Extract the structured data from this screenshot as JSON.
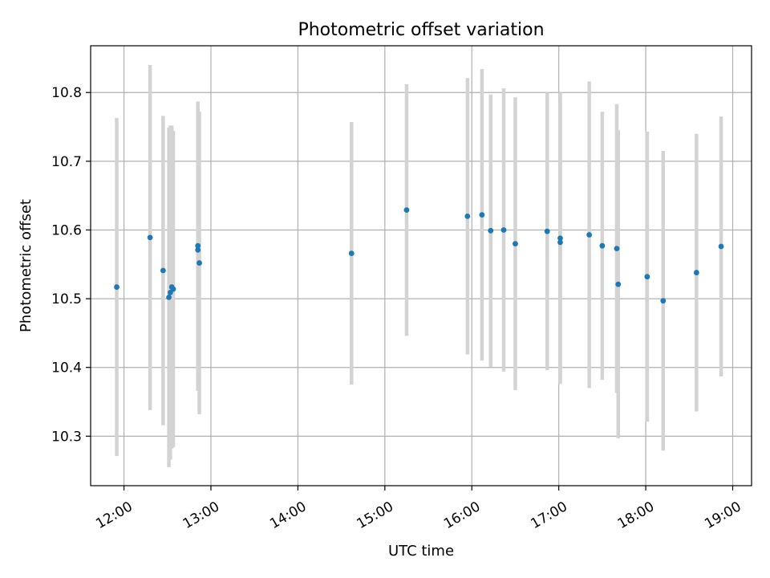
{
  "chart_data": {
    "type": "scatter",
    "title": "Photometric offset variation",
    "xlabel": "UTC time",
    "ylabel": "Photometric offset",
    "x_ticks": [
      "12:00",
      "13:00",
      "14:00",
      "15:00",
      "16:00",
      "17:00",
      "18:00",
      "19:00"
    ],
    "y_ticks": [
      10.3,
      10.4,
      10.5,
      10.6,
      10.7,
      10.8
    ],
    "xlim": [
      "11:37",
      "19:13"
    ],
    "ylim": [
      10.228,
      10.868
    ],
    "grid": true,
    "point_color": "#1f77b4",
    "errorbar_color": "#d3d3d3",
    "points": [
      {
        "t": "11:55",
        "y": 10.517,
        "err": 0.246
      },
      {
        "t": "12:18",
        "y": 10.589,
        "err": 0.251
      },
      {
        "t": "12:27",
        "y": 10.541,
        "err": 0.225
      },
      {
        "t": "12:31",
        "y": 10.502,
        "err": 0.247
      },
      {
        "t": "12:32",
        "y": 10.509,
        "err": 0.243
      },
      {
        "t": "12:33",
        "y": 10.517,
        "err": 0.235
      },
      {
        "t": "12:34",
        "y": 10.514,
        "err": 0.23
      },
      {
        "t": "12:51",
        "y": 10.577,
        "err": 0.21
      },
      {
        "t": "12:51",
        "y": 10.571,
        "err": 0.205
      },
      {
        "t": "12:52",
        "y": 10.552,
        "err": 0.22
      },
      {
        "t": "14:37",
        "y": 10.566,
        "err": 0.191
      },
      {
        "t": "15:15",
        "y": 10.629,
        "err": 0.183
      },
      {
        "t": "15:57",
        "y": 10.62,
        "err": 0.201
      },
      {
        "t": "16:07",
        "y": 10.622,
        "err": 0.212
      },
      {
        "t": "16:13",
        "y": 10.599,
        "err": 0.198
      },
      {
        "t": "16:22",
        "y": 10.6,
        "err": 0.206
      },
      {
        "t": "16:30",
        "y": 10.58,
        "err": 0.213
      },
      {
        "t": "16:52",
        "y": 10.598,
        "err": 0.202
      },
      {
        "t": "17:01",
        "y": 10.588,
        "err": 0.212
      },
      {
        "t": "17:01",
        "y": 10.582,
        "err": 0.203
      },
      {
        "t": "17:21",
        "y": 10.593,
        "err": 0.223
      },
      {
        "t": "17:30",
        "y": 10.577,
        "err": 0.195
      },
      {
        "t": "17:40",
        "y": 10.573,
        "err": 0.21
      },
      {
        "t": "17:41",
        "y": 10.521,
        "err": 0.224
      },
      {
        "t": "18:01",
        "y": 10.532,
        "err": 0.211
      },
      {
        "t": "18:12",
        "y": 10.497,
        "err": 0.218
      },
      {
        "t": "18:35",
        "y": 10.538,
        "err": 0.202
      },
      {
        "t": "18:52",
        "y": 10.576,
        "err": 0.189
      }
    ]
  }
}
